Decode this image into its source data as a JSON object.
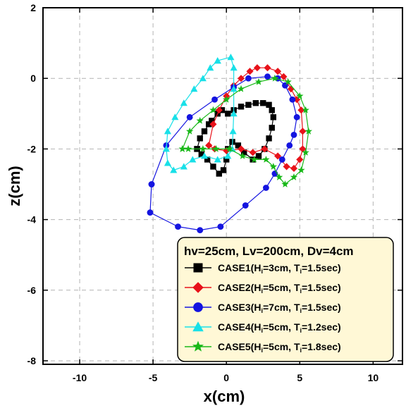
{
  "chart_data": {
    "type": "scatter",
    "xlabel": "x(cm)",
    "ylabel": "z(cm)",
    "xlim": [
      -12.5,
      12
    ],
    "ylim": [
      -8.1,
      2
    ],
    "xticks": [
      -10,
      -5,
      0,
      5,
      10
    ],
    "yticks": [
      2,
      0,
      -2,
      -4,
      -6,
      -8
    ],
    "xtick_labels": [
      "-10",
      "-5",
      "0",
      "5",
      "10"
    ],
    "ytick_labels": [
      "2",
      "0",
      "-2",
      "-4",
      "-6",
      "-8"
    ],
    "grid": true,
    "legend_position": "bottom-right",
    "legend_title": "hv=25cm, Lv=200cm, Dv=4cm",
    "series": [
      {
        "name": "CASE1(Hi=3cm, Ti=1.5sec)",
        "legend": {
          "case": "CASE1(H",
          "sub1": "i",
          "mid": "=3cm, T",
          "sub2": "i",
          "end": "=1.5sec)"
        },
        "color": "#000000",
        "marker": "square",
        "points": [
          [
            -2.0,
            -2.0
          ],
          [
            -1.8,
            -1.7
          ],
          [
            -1.5,
            -1.5
          ],
          [
            -1.2,
            -1.3
          ],
          [
            -1.0,
            -1.2
          ],
          [
            -0.6,
            -1.0
          ],
          [
            -0.3,
            -0.9
          ],
          [
            0.1,
            -1.0
          ],
          [
            0.5,
            -0.9
          ],
          [
            1.0,
            -0.8
          ],
          [
            1.5,
            -0.75
          ],
          [
            2.0,
            -0.7
          ],
          [
            2.5,
            -0.7
          ],
          [
            2.9,
            -0.75
          ],
          [
            3.1,
            -0.9
          ],
          [
            3.2,
            -1.1
          ],
          [
            3.1,
            -1.4
          ],
          [
            2.9,
            -1.7
          ],
          [
            2.6,
            -2.0
          ],
          [
            2.2,
            -2.2
          ],
          [
            1.8,
            -2.3
          ],
          [
            1.2,
            -2.1
          ],
          [
            0.8,
            -1.9
          ],
          [
            0.4,
            -1.8
          ],
          [
            0.1,
            -2.0
          ],
          [
            0.0,
            -2.3
          ],
          [
            -0.2,
            -2.6
          ],
          [
            -0.5,
            -2.7
          ],
          [
            -0.9,
            -2.5
          ],
          [
            -1.3,
            -2.3
          ],
          [
            -1.7,
            -2.15
          ],
          [
            -2.0,
            -2.0
          ]
        ]
      },
      {
        "name": "CASE2(Hi=5cm, Ti=1.5sec)",
        "legend": {
          "case": "CASE2(H",
          "sub1": "i",
          "mid": "=5cm, T",
          "sub2": "i",
          "end": "=1.5sec)"
        },
        "color": "#e8121a",
        "marker": "diamond",
        "points": [
          [
            -1.2,
            -1.9
          ],
          [
            -0.9,
            -1.3
          ],
          [
            -0.5,
            -0.9
          ],
          [
            0.0,
            -0.5
          ],
          [
            0.5,
            -0.2
          ],
          [
            1.0,
            0.0
          ],
          [
            1.6,
            0.2
          ],
          [
            2.1,
            0.3
          ],
          [
            2.8,
            0.3
          ],
          [
            3.5,
            0.2
          ],
          [
            3.9,
            0.05
          ],
          [
            4.4,
            -0.3
          ],
          [
            4.8,
            -0.6
          ],
          [
            5.1,
            -0.9
          ],
          [
            5.2,
            -1.5
          ],
          [
            5.2,
            -2.0
          ],
          [
            5.0,
            -2.3
          ],
          [
            4.6,
            -2.55
          ],
          [
            4.1,
            -2.5
          ],
          [
            3.5,
            -2.2
          ],
          [
            2.6,
            -2.0
          ],
          [
            1.8,
            -2.1
          ],
          [
            1.0,
            -2.0
          ],
          [
            0.0,
            -2.05
          ],
          [
            -0.8,
            -2.0
          ],
          [
            -1.2,
            -1.9
          ]
        ]
      },
      {
        "name": "CASE3(Hi=7cm, Ti=1.5sec)",
        "legend": {
          "case": "CASE3(H",
          "sub1": "i",
          "mid": "=7cm, T",
          "sub2": "i",
          "end": "=1.5sec)"
        },
        "color": "#1414e0",
        "marker": "circle",
        "points": [
          [
            -5.1,
            -3.0
          ],
          [
            -4.1,
            -1.9
          ],
          [
            -2.5,
            -1.1
          ],
          [
            -0.8,
            -0.6
          ],
          [
            0.5,
            -0.25
          ],
          [
            1.5,
            0.0
          ],
          [
            2.8,
            0.05
          ],
          [
            3.5,
            0.0
          ],
          [
            4.0,
            -0.2
          ],
          [
            4.5,
            -0.6
          ],
          [
            4.8,
            -1.1
          ],
          [
            4.6,
            -1.6
          ],
          [
            4.3,
            -1.9
          ],
          [
            3.8,
            -2.3
          ],
          [
            3.3,
            -2.7
          ],
          [
            2.7,
            -3.1
          ],
          [
            1.3,
            -3.6
          ],
          [
            -0.4,
            -4.2
          ],
          [
            -1.8,
            -4.3
          ],
          [
            -3.3,
            -4.2
          ],
          [
            -5.2,
            -3.8
          ],
          [
            -5.1,
            -3.0
          ]
        ]
      },
      {
        "name": "CASE4(Hi=5cm, Ti=1.2sec)",
        "legend": {
          "case": "CASE4(H",
          "sub1": "i",
          "mid": "=5cm, T",
          "sub2": "i",
          "end": "=1.2sec)"
        },
        "color": "#18e0e8",
        "marker": "triangle",
        "points": [
          [
            -0.6,
            0.5
          ],
          [
            -1.1,
            0.3
          ],
          [
            -1.6,
            0.0
          ],
          [
            -2.2,
            -0.3
          ],
          [
            -2.9,
            -0.7
          ],
          [
            -3.5,
            -1.1
          ],
          [
            -4.0,
            -1.5
          ],
          [
            -4.1,
            -2.0
          ],
          [
            -4.0,
            -2.4
          ],
          [
            -3.6,
            -2.6
          ],
          [
            -2.9,
            -2.5
          ],
          [
            -2.3,
            -2.3
          ],
          [
            -1.5,
            -2.2
          ],
          [
            -0.6,
            -2.3
          ],
          [
            0.1,
            -2.2
          ],
          [
            0.4,
            -2.0
          ],
          [
            0.45,
            -1.5
          ],
          [
            0.5,
            -1.0
          ],
          [
            0.5,
            -0.3
          ],
          [
            0.5,
            0.3
          ],
          [
            0.3,
            0.6
          ],
          [
            -0.6,
            0.5
          ]
        ]
      },
      {
        "name": "CASE5(Hi=5cm, Ti=1.8sec)",
        "legend": {
          "case": "CASE5(H",
          "sub1": "i",
          "mid": "=5cm, T",
          "sub2": "i",
          "end": "=1.8sec)"
        },
        "color": "#18b818",
        "marker": "star",
        "points": [
          [
            -3.0,
            -2.0
          ],
          [
            -2.5,
            -1.5
          ],
          [
            -1.8,
            -1.2
          ],
          [
            -0.9,
            -0.9
          ],
          [
            0.0,
            -0.6
          ],
          [
            1.0,
            -0.3
          ],
          [
            2.2,
            -0.1
          ],
          [
            3.3,
            0.0
          ],
          [
            4.2,
            -0.1
          ],
          [
            5.0,
            -0.5
          ],
          [
            5.4,
            -0.9
          ],
          [
            5.6,
            -1.5
          ],
          [
            5.4,
            -2.1
          ],
          [
            5.1,
            -2.6
          ],
          [
            4.6,
            -2.8
          ],
          [
            4.0,
            -3.0
          ],
          [
            3.6,
            -2.8
          ],
          [
            3.2,
            -2.5
          ],
          [
            2.7,
            -2.3
          ],
          [
            1.9,
            -2.3
          ],
          [
            1.1,
            -2.2
          ],
          [
            0.2,
            -2.0
          ],
          [
            -0.7,
            -2.0
          ],
          [
            -1.6,
            -2.0
          ],
          [
            -2.6,
            -2.0
          ],
          [
            -3.0,
            -2.0
          ]
        ]
      }
    ]
  }
}
